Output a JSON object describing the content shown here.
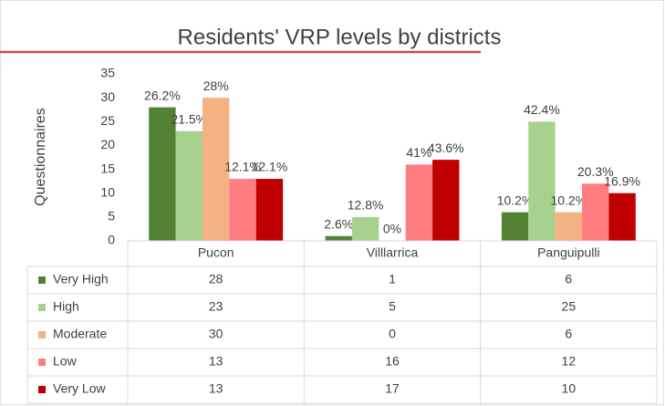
{
  "chart_data": {
    "type": "bar",
    "title": "Residents' VRP levels by districts",
    "y_label": "Questionnaires",
    "categories": [
      "Pucon",
      "Villlarrica",
      "Panguipulli"
    ],
    "series": [
      {
        "name": "Very High",
        "color": "#548235",
        "values": [
          28,
          1,
          6
        ],
        "data_labels": [
          "26.2%",
          "2.6%",
          "10.2%"
        ]
      },
      {
        "name": "High",
        "color": "#a9d18e",
        "values": [
          23,
          5,
          25
        ],
        "data_labels": [
          "21.5%",
          "12.8%",
          "42.4%"
        ]
      },
      {
        "name": "Moderate",
        "color": "#f4b183",
        "values": [
          30,
          0,
          6
        ],
        "data_labels": [
          "28%",
          "0%",
          "10.2%"
        ]
      },
      {
        "name": "Low",
        "color": "#ff7c80",
        "values": [
          13,
          16,
          12
        ],
        "data_labels": [
          "12.1%",
          "41%",
          "20.3%"
        ]
      },
      {
        "name": "Very Low",
        "color": "#c00000",
        "values": [
          13,
          17,
          10
        ],
        "data_labels": [
          "12.1%",
          "43.6%",
          "16.9%"
        ]
      }
    ],
    "ylim": [
      0,
      35
    ],
    "yticks": [
      0,
      5,
      10,
      15,
      20,
      25,
      30,
      35
    ],
    "grid": false,
    "legend": "table"
  }
}
